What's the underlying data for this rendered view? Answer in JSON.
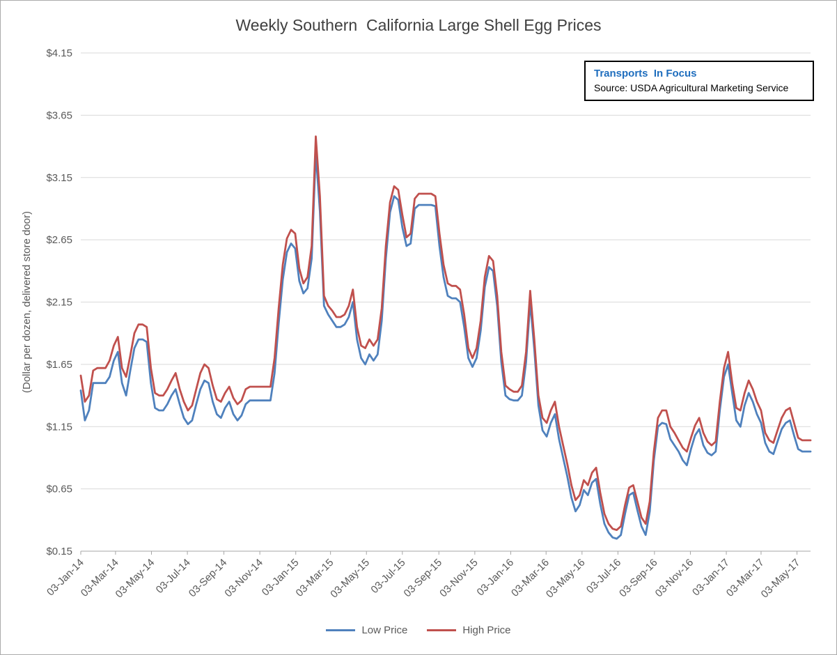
{
  "annotation": {
    "title": "Transports  In Focus",
    "source": "Source: USDA Agricultural Marketing Service",
    "accent_color": "#1F6EBE"
  },
  "chart_data": {
    "type": "line",
    "title": "Weekly Southern  California Large Shell Egg Prices",
    "xlabel": "",
    "ylabel": "(Dollar per dozen, delivered store door)",
    "ylim": [
      0.15,
      4.15
    ],
    "y_ticks": [
      0.15,
      0.65,
      1.15,
      1.65,
      2.15,
      2.65,
      3.15,
      3.65,
      4.15
    ],
    "y_tick_prefix": "$",
    "grid": "horizontal",
    "legend_position": "bottom",
    "x_unit": "weekly",
    "x_start": "03-Jan-14",
    "x_end": "26-May-17",
    "x_tick_labels": [
      "03-Jan-14",
      "03-Mar-14",
      "03-May-14",
      "03-Jul-14",
      "03-Sep-14",
      "03-Nov-14",
      "03-Jan-15",
      "03-Mar-15",
      "03-May-15",
      "03-Jul-15",
      "03-Sep-15",
      "03-Nov-15",
      "03-Jan-16",
      "03-Mar-16",
      "03-May-16",
      "03-Jul-16",
      "03-Sep-16",
      "03-Nov-16",
      "03-Jan-17",
      "03-Mar-17",
      "03-May-17"
    ],
    "series": [
      {
        "name": "Low Price",
        "color": "#4F81BD",
        "values": [
          1.44,
          1.2,
          1.28,
          1.5,
          1.5,
          1.5,
          1.5,
          1.55,
          1.68,
          1.75,
          1.5,
          1.4,
          1.6,
          1.78,
          1.85,
          1.85,
          1.83,
          1.5,
          1.3,
          1.28,
          1.28,
          1.33,
          1.4,
          1.45,
          1.33,
          1.22,
          1.17,
          1.2,
          1.33,
          1.45,
          1.52,
          1.5,
          1.35,
          1.25,
          1.22,
          1.3,
          1.35,
          1.25,
          1.2,
          1.24,
          1.33,
          1.36,
          1.36,
          1.36,
          1.36,
          1.36,
          1.36,
          1.58,
          1.98,
          2.33,
          2.55,
          2.62,
          2.58,
          2.32,
          2.22,
          2.26,
          2.5,
          3.35,
          2.88,
          2.12,
          2.05,
          2.0,
          1.95,
          1.95,
          1.97,
          2.03,
          2.15,
          1.85,
          1.7,
          1.65,
          1.73,
          1.68,
          1.73,
          2.0,
          2.5,
          2.87,
          3.0,
          2.97,
          2.75,
          2.6,
          2.62,
          2.9,
          2.93,
          2.93,
          2.93,
          2.93,
          2.92,
          2.6,
          2.35,
          2.2,
          2.18,
          2.18,
          2.15,
          1.95,
          1.7,
          1.63,
          1.7,
          1.92,
          2.27,
          2.43,
          2.4,
          2.12,
          1.67,
          1.4,
          1.37,
          1.36,
          1.36,
          1.4,
          1.67,
          2.15,
          1.77,
          1.32,
          1.12,
          1.07,
          1.18,
          1.25,
          1.05,
          0.9,
          0.75,
          0.58,
          0.47,
          0.52,
          0.64,
          0.6,
          0.7,
          0.73,
          0.53,
          0.37,
          0.3,
          0.26,
          0.25,
          0.28,
          0.45,
          0.6,
          0.62,
          0.48,
          0.35,
          0.28,
          0.47,
          0.88,
          1.15,
          1.18,
          1.17,
          1.05,
          1.0,
          0.95,
          0.88,
          0.84,
          0.97,
          1.08,
          1.13,
          1.0,
          0.94,
          0.92,
          0.95,
          1.28,
          1.55,
          1.65,
          1.42,
          1.2,
          1.15,
          1.32,
          1.42,
          1.35,
          1.25,
          1.18,
          1.02,
          0.95,
          0.93,
          1.03,
          1.13,
          1.18,
          1.2,
          1.08,
          0.97,
          0.95,
          0.95,
          0.95
        ]
      },
      {
        "name": "High Price",
        "color": "#C0504D",
        "values": [
          1.56,
          1.35,
          1.4,
          1.6,
          1.62,
          1.62,
          1.62,
          1.68,
          1.8,
          1.87,
          1.62,
          1.55,
          1.72,
          1.9,
          1.97,
          1.97,
          1.95,
          1.62,
          1.42,
          1.4,
          1.4,
          1.45,
          1.52,
          1.58,
          1.45,
          1.35,
          1.28,
          1.32,
          1.45,
          1.58,
          1.65,
          1.62,
          1.48,
          1.37,
          1.35,
          1.42,
          1.47,
          1.38,
          1.33,
          1.36,
          1.45,
          1.47,
          1.47,
          1.47,
          1.47,
          1.47,
          1.47,
          1.7,
          2.1,
          2.45,
          2.66,
          2.73,
          2.7,
          2.42,
          2.3,
          2.35,
          2.6,
          3.48,
          3.0,
          2.2,
          2.12,
          2.08,
          2.03,
          2.03,
          2.05,
          2.12,
          2.25,
          1.95,
          1.8,
          1.78,
          1.85,
          1.8,
          1.85,
          2.1,
          2.6,
          2.95,
          3.08,
          3.05,
          2.85,
          2.67,
          2.7,
          2.98,
          3.02,
          3.02,
          3.02,
          3.02,
          3.0,
          2.7,
          2.45,
          2.3,
          2.28,
          2.28,
          2.25,
          2.05,
          1.78,
          1.7,
          1.78,
          2.0,
          2.35,
          2.52,
          2.48,
          2.2,
          1.75,
          1.48,
          1.45,
          1.43,
          1.43,
          1.48,
          1.75,
          2.24,
          1.85,
          1.4,
          1.22,
          1.18,
          1.28,
          1.35,
          1.15,
          1.0,
          0.85,
          0.68,
          0.56,
          0.6,
          0.72,
          0.68,
          0.78,
          0.82,
          0.62,
          0.45,
          0.37,
          0.33,
          0.32,
          0.35,
          0.52,
          0.66,
          0.68,
          0.55,
          0.42,
          0.37,
          0.55,
          0.95,
          1.22,
          1.28,
          1.28,
          1.15,
          1.1,
          1.04,
          0.98,
          0.95,
          1.06,
          1.16,
          1.22,
          1.1,
          1.03,
          1.0,
          1.03,
          1.35,
          1.62,
          1.75,
          1.5,
          1.3,
          1.28,
          1.42,
          1.52,
          1.45,
          1.35,
          1.28,
          1.1,
          1.04,
          1.02,
          1.12,
          1.22,
          1.28,
          1.3,
          1.18,
          1.06,
          1.04,
          1.04,
          1.04
        ]
      }
    ]
  }
}
